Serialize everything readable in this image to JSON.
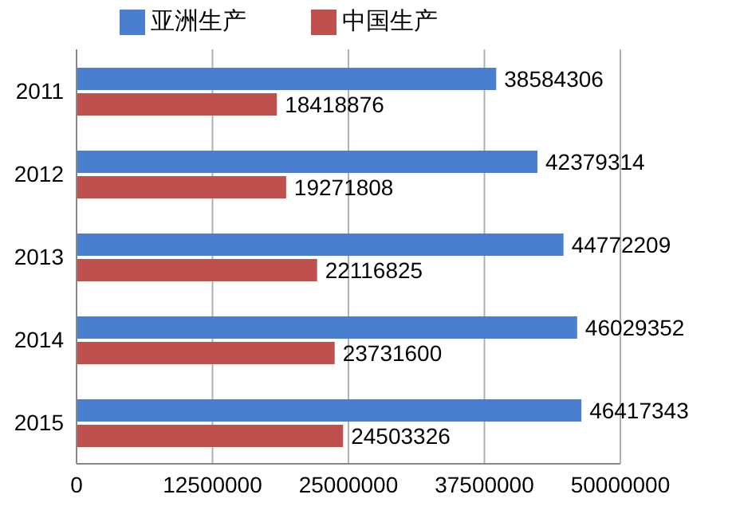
{
  "chart_data": {
    "type": "bar",
    "orientation": "horizontal",
    "categories": [
      "2011",
      "2012",
      "2013",
      "2014",
      "2015"
    ],
    "series": [
      {
        "name": "亚洲生产",
        "color": "#4a7ecf",
        "values": [
          38584306,
          42379314,
          44772209,
          46029352,
          46417343
        ]
      },
      {
        "name": "中国生产",
        "color": "#c0504d",
        "values": [
          18418876,
          19271808,
          22116825,
          23731600,
          24503326
        ]
      }
    ],
    "xlim": [
      0,
      50000000
    ],
    "xticks": [
      0,
      12500000,
      25000000,
      37500000,
      50000000
    ],
    "grid": "x",
    "legend": "top",
    "data_labels": true
  }
}
